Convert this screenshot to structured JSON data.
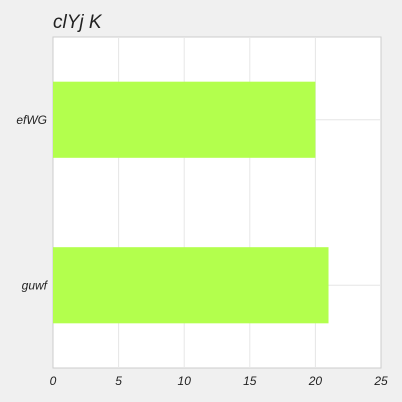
{
  "chart_data": {
    "type": "bar",
    "orientation": "horizontal",
    "title": "clYj K",
    "categories": [
      "efWG",
      "guwf"
    ],
    "values": [
      20,
      21
    ],
    "xlim": [
      0,
      25
    ],
    "xticks": [
      0,
      5,
      10,
      15,
      20,
      25
    ],
    "xlabel": "",
    "ylabel": "",
    "grid": true,
    "bar_color": "#b3ff4d",
    "plot_background": "#ffffff",
    "page_background": "#f0f0f0",
    "grid_color": "#e6e6e6"
  }
}
